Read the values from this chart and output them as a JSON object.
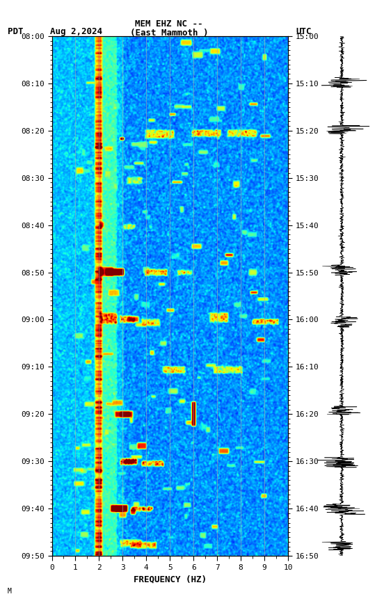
{
  "title_line1": "MEM EHZ NC --",
  "title_line2": "(East Mammoth )",
  "left_label": "PDT",
  "date_label": "Aug 2,2024",
  "right_label": "UTC",
  "freq_min": 0,
  "freq_max": 10,
  "xlabel": "FREQUENCY (HZ)",
  "pdt_ticks": [
    "08:00",
    "08:10",
    "08:20",
    "08:30",
    "08:40",
    "08:50",
    "09:00",
    "09:10",
    "09:20",
    "09:30",
    "09:40",
    "09:50"
  ],
  "utc_ticks": [
    "15:00",
    "15:10",
    "15:20",
    "15:30",
    "15:40",
    "15:50",
    "16:00",
    "16:10",
    "16:20",
    "16:30",
    "16:40",
    "16:50"
  ],
  "vertical_lines_freq": [
    1,
    2,
    3,
    4,
    5,
    6,
    7,
    8,
    9
  ],
  "background_color": "#ffffff",
  "colormap": "jet",
  "figsize": [
    5.52,
    8.64
  ],
  "dpi": 100
}
